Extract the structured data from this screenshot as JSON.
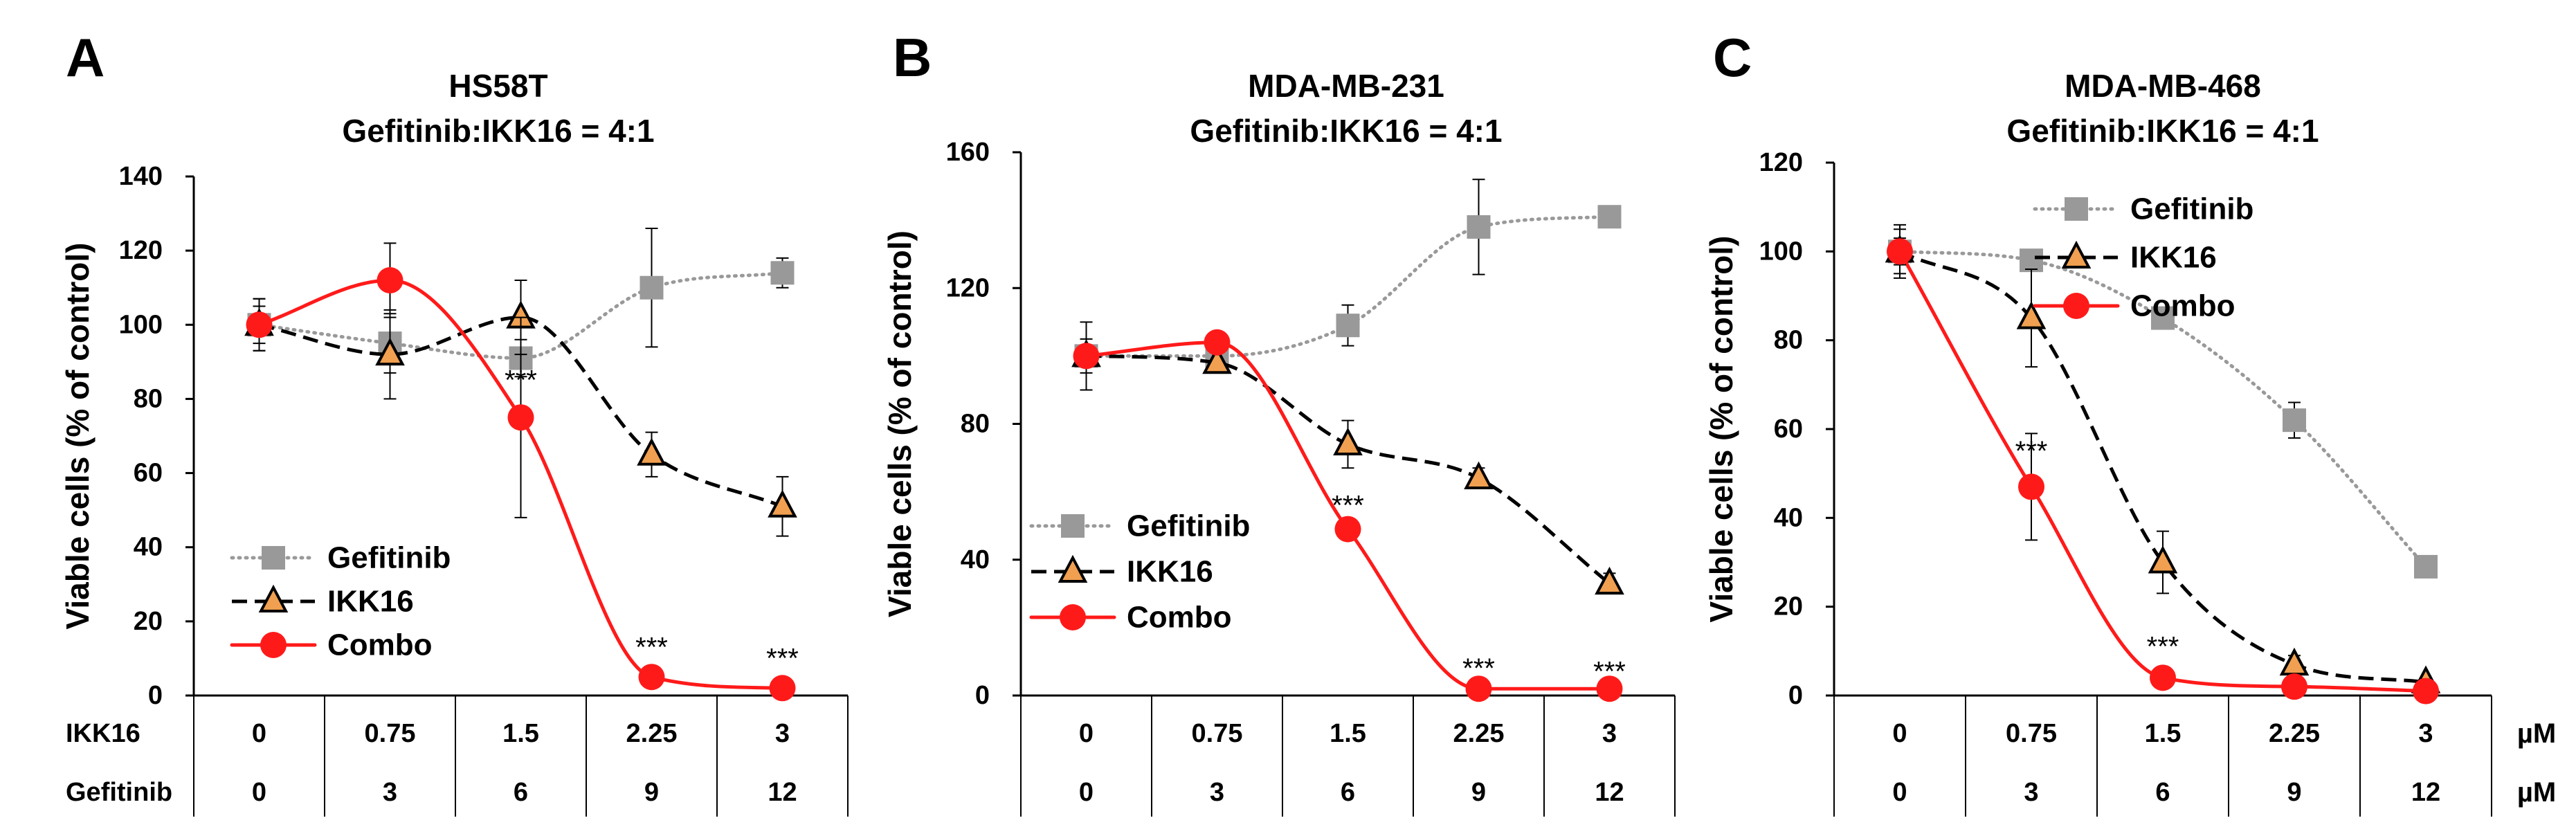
{
  "units_label": "µM",
  "dose_row_labels": {
    "ikk16": "IKK16",
    "gefitinib": "Gefitinib"
  },
  "colors": {
    "gefitinib": "#999999",
    "ikk16": "#000000",
    "ikk16_fill": "#F0A050",
    "combo": "#FF1A1A",
    "axis": "#000000"
  },
  "chart_data": [
    {
      "panel": "A",
      "type": "line",
      "title": "HS58T",
      "subtitle": "Gefitinib:IKK16 = 4:1",
      "ylabel": "Viable cells (% of control)",
      "xlabel": "",
      "ylim": [
        0,
        140
      ],
      "yticks": [
        0,
        20,
        40,
        60,
        80,
        100,
        120,
        140
      ],
      "categories": [
        "0",
        "0.75",
        "1.5",
        "2.25",
        "3"
      ],
      "ikk16_doses": [
        "0",
        "0.75",
        "1.5",
        "2.25",
        "3"
      ],
      "gefitinib_doses": [
        "0",
        "3",
        "6",
        "9",
        "12"
      ],
      "legend_position": "bottom-left",
      "series": [
        {
          "name": "Gefitinib",
          "values": [
            100,
            95,
            91,
            110,
            114
          ],
          "errors": [
            7,
            8,
            5,
            16,
            4
          ],
          "style": "dotted",
          "marker": "square"
        },
        {
          "name": "IKK16",
          "values": [
            100,
            92,
            102,
            65,
            51
          ],
          "errors": [
            7,
            12,
            10,
            6,
            8
          ],
          "style": "dashed",
          "marker": "triangle"
        },
        {
          "name": "Combo",
          "values": [
            100,
            112,
            75,
            5,
            2
          ],
          "errors": [
            5,
            10,
            27,
            1,
            1
          ],
          "style": "solid",
          "marker": "circle"
        }
      ],
      "significance": [
        {
          "index": 2,
          "y": 85,
          "label": "***"
        },
        {
          "index": 3,
          "y": 13,
          "label": "***"
        },
        {
          "index": 4,
          "y": 10,
          "label": "***"
        }
      ]
    },
    {
      "panel": "B",
      "type": "line",
      "title": "MDA-MB-231",
      "subtitle": "Gefitinib:IKK16 = 4:1",
      "ylabel": "Viable cells (% of control)",
      "xlabel": "",
      "ylim": [
        0,
        160
      ],
      "yticks": [
        0,
        40,
        80,
        120,
        160
      ],
      "categories": [
        "0",
        "0.75",
        "1.5",
        "2.25",
        "3"
      ],
      "ikk16_doses": [
        "0",
        "0.75",
        "1.5",
        "2.25",
        "3"
      ],
      "gefitinib_doses": [
        "0",
        "3",
        "6",
        "9",
        "12"
      ],
      "legend_position": "bottom-left",
      "series": [
        {
          "name": "Gefitinib",
          "values": [
            100,
            100,
            109,
            138,
            141
          ],
          "errors": [
            10,
            3,
            6,
            14,
            3
          ],
          "style": "dotted",
          "marker": "square"
        },
        {
          "name": "IKK16",
          "values": [
            100,
            98,
            74,
            64,
            33
          ],
          "errors": [
            5,
            3,
            7,
            3,
            3
          ],
          "style": "dashed",
          "marker": "triangle"
        },
        {
          "name": "Combo",
          "values": [
            100,
            104,
            49,
            2,
            2
          ],
          "errors": [
            3,
            3,
            2,
            1,
            1
          ],
          "style": "solid",
          "marker": "circle"
        }
      ],
      "significance": [
        {
          "index": 2,
          "y": 56,
          "label": "***"
        },
        {
          "index": 3,
          "y": 8,
          "label": "***"
        },
        {
          "index": 4,
          "y": 7,
          "label": "***"
        }
      ]
    },
    {
      "panel": "C",
      "type": "line",
      "title": "MDA-MB-468",
      "subtitle": "Gefitinib:IKK16 = 4:1",
      "ylabel": "Viable cells (% of control)",
      "xlabel": "",
      "ylim": [
        0,
        120
      ],
      "yticks": [
        0,
        20,
        40,
        60,
        80,
        100,
        120
      ],
      "categories": [
        "0",
        "0.75",
        "1.5",
        "2.25",
        "3"
      ],
      "ikk16_doses": [
        "0",
        "0.75",
        "1.5",
        "2.25",
        "3"
      ],
      "gefitinib_doses": [
        "0",
        "3",
        "6",
        "9",
        "12"
      ],
      "legend_position": "top-right",
      "series": [
        {
          "name": "Gefitinib",
          "values": [
            100,
            98,
            85,
            62,
            29
          ],
          "errors": [
            6,
            2,
            2,
            4,
            2
          ],
          "style": "dotted",
          "marker": "square"
        },
        {
          "name": "IKK16",
          "values": [
            100,
            85,
            30,
            7,
            3
          ],
          "errors": [
            5,
            11,
            7,
            2,
            1
          ],
          "style": "dashed",
          "marker": "triangle"
        },
        {
          "name": "Combo",
          "values": [
            100,
            47,
            4,
            2,
            1
          ],
          "errors": [
            3,
            12,
            2,
            1,
            1
          ],
          "style": "solid",
          "marker": "circle"
        }
      ],
      "significance": [
        {
          "index": 1,
          "y": 55,
          "label": "***"
        },
        {
          "index": 2,
          "y": 11,
          "label": "***"
        }
      ]
    }
  ]
}
